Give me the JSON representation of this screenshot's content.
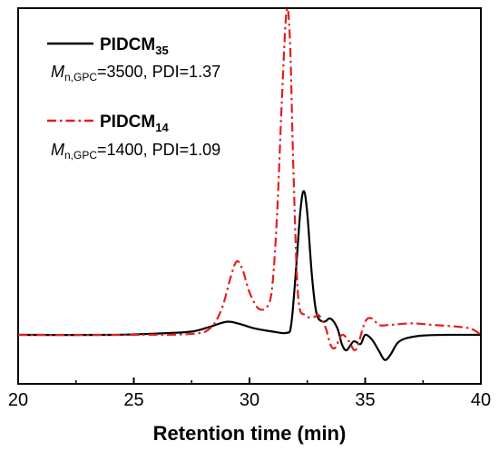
{
  "chart_data": {
    "type": "line",
    "xlabel": "Retention time (min)",
    "ylabel": "",
    "xlim": [
      20,
      40
    ],
    "ylim": [
      -0.15,
      1.0
    ],
    "x_ticks": [
      "20",
      "25",
      "30",
      "35",
      "40"
    ],
    "y_ticks_shown": false,
    "grid": false,
    "legend_position": "top-left",
    "series": [
      {
        "label_main": "PIDCM",
        "label_sub": "35",
        "info_prefix": "M",
        "info_sub": "n,GPC",
        "info_text": "=3500, PDI=1.37",
        "color": "#000000",
        "style": "solid",
        "points": [
          [
            20,
            0
          ],
          [
            24,
            0
          ],
          [
            26,
            0.004
          ],
          [
            27.5,
            0.01
          ],
          [
            28.3,
            0.025
          ],
          [
            29.0,
            0.04
          ],
          [
            29.5,
            0.035
          ],
          [
            30.2,
            0.02
          ],
          [
            31.0,
            0.01
          ],
          [
            31.6,
            0.006
          ],
          [
            31.8,
            0.03
          ],
          [
            32.0,
            0.19
          ],
          [
            32.2,
            0.38
          ],
          [
            32.35,
            0.44
          ],
          [
            32.5,
            0.37
          ],
          [
            32.7,
            0.18
          ],
          [
            32.9,
            0.065
          ],
          [
            33.2,
            0.04
          ],
          [
            33.5,
            0.05
          ],
          [
            33.8,
            0.02
          ],
          [
            34.0,
            -0.03
          ],
          [
            34.2,
            -0.047
          ],
          [
            34.5,
            -0.02
          ],
          [
            34.8,
            -0.028
          ],
          [
            35.0,
            0.0
          ],
          [
            35.3,
            -0.015
          ],
          [
            35.6,
            -0.05
          ],
          [
            35.85,
            -0.077
          ],
          [
            36.1,
            -0.06
          ],
          [
            36.4,
            -0.025
          ],
          [
            36.8,
            -0.01
          ],
          [
            37.5,
            -0.002
          ],
          [
            38.5,
            0
          ],
          [
            40,
            0
          ]
        ]
      },
      {
        "label_main": "PIDCM",
        "label_sub": "14",
        "info_prefix": "M",
        "info_sub": "n,GPC",
        "info_text": "=1400, PDI=1.09",
        "color": "#e02020",
        "style": "dashdot",
        "points": [
          [
            20,
            0
          ],
          [
            25,
            0
          ],
          [
            27.5,
            0.003
          ],
          [
            28.3,
            0.02
          ],
          [
            28.8,
            0.08
          ],
          [
            29.2,
            0.18
          ],
          [
            29.45,
            0.225
          ],
          [
            29.7,
            0.2
          ],
          [
            30.0,
            0.13
          ],
          [
            30.4,
            0.08
          ],
          [
            30.8,
            0.09
          ],
          [
            31.0,
            0.16
          ],
          [
            31.2,
            0.38
          ],
          [
            31.4,
            0.72
          ],
          [
            31.6,
            0.99
          ],
          [
            31.75,
            0.9
          ],
          [
            31.9,
            0.5
          ],
          [
            32.1,
            0.12
          ],
          [
            32.4,
            0.06
          ],
          [
            32.8,
            0.055
          ],
          [
            33.0,
            0.06
          ],
          [
            33.3,
            0.02
          ],
          [
            33.5,
            -0.03
          ],
          [
            33.7,
            -0.04
          ],
          [
            34.0,
            0.0
          ],
          [
            34.3,
            -0.02
          ],
          [
            34.6,
            -0.045
          ],
          [
            35.0,
            0.04
          ],
          [
            35.3,
            0.05
          ],
          [
            35.6,
            0.03
          ],
          [
            36.0,
            0.03
          ],
          [
            37.0,
            0.035
          ],
          [
            38.0,
            0.03
          ],
          [
            39.0,
            0.025
          ],
          [
            39.6,
            0.018
          ],
          [
            40,
            0
          ]
        ]
      }
    ]
  }
}
